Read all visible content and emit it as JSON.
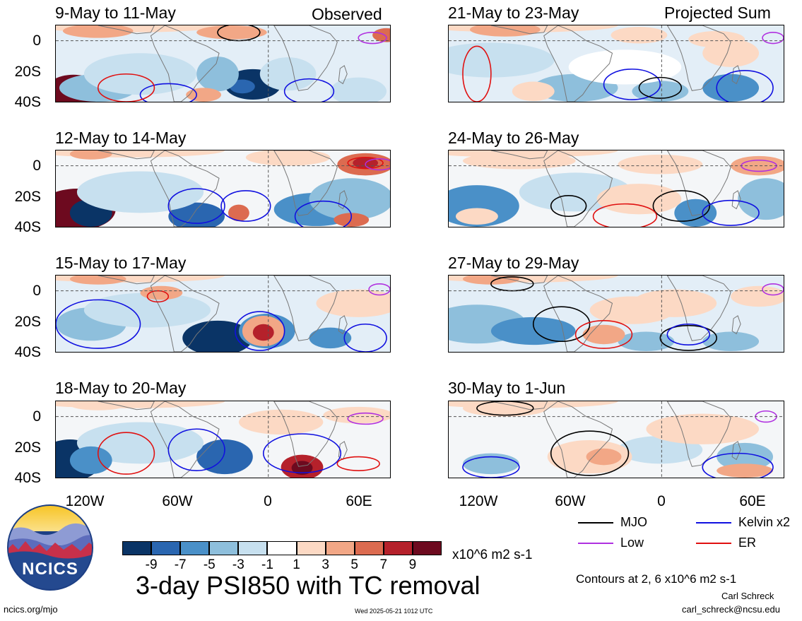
{
  "panels": [
    {
      "id": "p1",
      "title": "9-May to 11-May",
      "tag": "Observed"
    },
    {
      "id": "p2",
      "title": "21-May to 23-May",
      "tag": "Projected Sum"
    },
    {
      "id": "p3",
      "title": "12-May to 14-May",
      "tag": ""
    },
    {
      "id": "p4",
      "title": "24-May to 26-May",
      "tag": ""
    },
    {
      "id": "p5",
      "title": "15-May to 17-May",
      "tag": ""
    },
    {
      "id": "p6",
      "title": "27-May to 29-May",
      "tag": ""
    },
    {
      "id": "p7",
      "title": "18-May to 20-May",
      "tag": ""
    },
    {
      "id": "p8",
      "title": "30-May to 1-Jun",
      "tag": ""
    }
  ],
  "y_ticks": [
    "0",
    "20S",
    "40S"
  ],
  "x_ticks": [
    "120W",
    "60W",
    "0",
    "60E"
  ],
  "colorbar": {
    "colors": [
      "#0a3466",
      "#2a66b0",
      "#4a90c8",
      "#8ebfdc",
      "#c7e0ef",
      "#ffffff",
      "#fcd9c4",
      "#f2a786",
      "#dc6b50",
      "#b5212b",
      "#6d0a1f"
    ],
    "labels": [
      "-9",
      "-7",
      "-5",
      "-3",
      "-1",
      "1",
      "3",
      "5",
      "7",
      "9"
    ],
    "units": "x10^6 m2 s-1"
  },
  "legend": {
    "items": [
      {
        "name": "MJO",
        "color": "#000000"
      },
      {
        "name": "Kelvin x2",
        "color": "#1010e0"
      },
      {
        "name": "Low",
        "color": "#b030e0"
      },
      {
        "name": "ER",
        "color": "#e01010"
      }
    ],
    "note": "Contours at 2, 6 x10^6 m2 s-1"
  },
  "main_title": "3-day PSI850 with TC removal",
  "logo_text": "NCICS",
  "url": "ncics.org/mjo",
  "timestamp": "Wed 2025-05-21 1012 UTC",
  "author": "Carl Schreck",
  "email": "carl_schreck@ncsu.edu"
}
